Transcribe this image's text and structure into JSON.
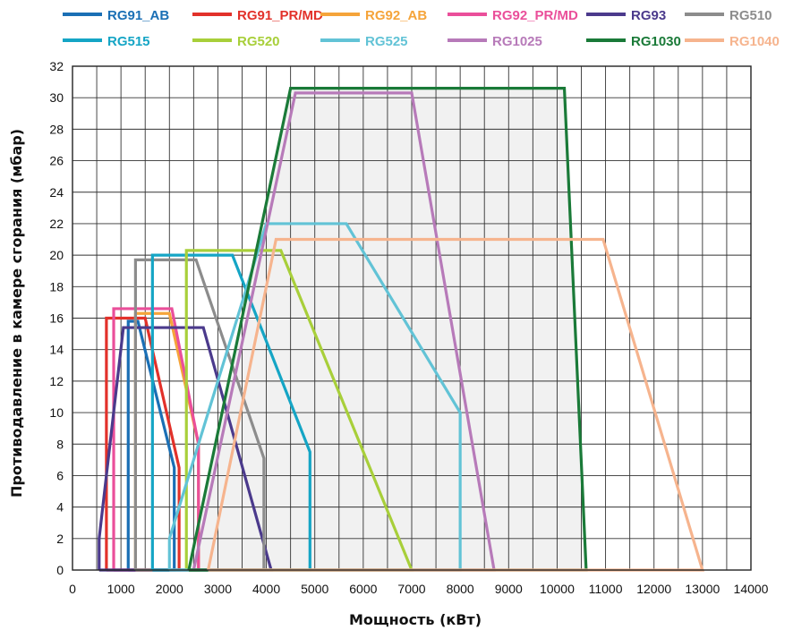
{
  "chart_data": {
    "type": "line",
    "title": "",
    "xlabel": "Мощность (кВт)",
    "ylabel": "Противодавление в камере сгорания (мбар)",
    "xlim": [
      0,
      14000
    ],
    "ylim": [
      0,
      32
    ],
    "xticks": [
      0,
      1000,
      2000,
      3000,
      4000,
      5000,
      6000,
      7000,
      8000,
      9000,
      10000,
      11000,
      12000,
      13000,
      14000
    ],
    "yticks": [
      0,
      2,
      4,
      6,
      8,
      10,
      12,
      14,
      16,
      18,
      20,
      22,
      24,
      26,
      28,
      30,
      32
    ],
    "xtick_labels": [
      "0",
      "1000",
      "2000",
      "3000",
      "4000",
      "5000",
      "6000",
      "7000",
      "8000",
      "9000",
      "10000",
      "11000",
      "12000",
      "13000",
      "14000"
    ],
    "ytick_labels": [
      "0",
      "2",
      "4",
      "6",
      "8",
      "10",
      "12",
      "14",
      "16",
      "18",
      "20",
      "22",
      "24",
      "26",
      "28",
      "30",
      "32"
    ],
    "grid": true,
    "legend_position": "top",
    "series": [
      {
        "name": "RG91_AB",
        "color": "#1a6fb5",
        "x": [
          1150,
          1150,
          1350,
          2100,
          2100,
          1150
        ],
        "y": [
          0,
          15.8,
          15.8,
          6.5,
          0,
          0
        ]
      },
      {
        "name": "RG91_PR/MD",
        "color": "#e2312a",
        "x": [
          700,
          700,
          1500,
          2200,
          2200,
          700
        ],
        "y": [
          0,
          16,
          16,
          6.5,
          0,
          0
        ]
      },
      {
        "name": "RG92_AB",
        "color": "#f5a43a",
        "x": [
          1300,
          1300,
          2000,
          2600,
          2600,
          1300
        ],
        "y": [
          0,
          16.3,
          16.3,
          8,
          0,
          0
        ]
      },
      {
        "name": "RG92_PR/MD",
        "color": "#ea4f9a",
        "x": [
          850,
          850,
          2050,
          2600,
          2600,
          850
        ],
        "y": [
          0,
          16.6,
          16.6,
          8,
          0,
          0
        ]
      },
      {
        "name": "RG93",
        "color": "#4b3a8c",
        "x": [
          550,
          550,
          1050,
          2700,
          4100,
          550
        ],
        "y": [
          0,
          2,
          15.4,
          15.4,
          0,
          0
        ]
      },
      {
        "name": "RG510",
        "color": "#8c8c8c",
        "x": [
          1300,
          1300,
          2550,
          3950,
          3950,
          1300
        ],
        "y": [
          0,
          19.7,
          19.7,
          7.1,
          0,
          0
        ]
      },
      {
        "name": "RG515",
        "color": "#15a5c5",
        "x": [
          1650,
          1650,
          3300,
          4900,
          4900,
          1650
        ],
        "y": [
          0,
          20,
          20,
          7.5,
          0,
          0
        ]
      },
      {
        "name": "RG520",
        "color": "#a8cf3a",
        "x": [
          2350,
          2350,
          4300,
          7000,
          2350
        ],
        "y": [
          0,
          20.3,
          20.3,
          0,
          0
        ]
      },
      {
        "name": "RG525",
        "color": "#62c3d6",
        "x": [
          2000,
          2000,
          4000,
          5650,
          8000,
          8000,
          2000
        ],
        "y": [
          0,
          2,
          22,
          22,
          10,
          0,
          0
        ]
      },
      {
        "name": "RG1025",
        "color": "#b77ab9",
        "x": [
          2500,
          4600,
          7000,
          8700,
          2500
        ],
        "y": [
          0,
          30.3,
          30.3,
          0,
          0
        ]
      },
      {
        "name": "RG1030",
        "color": "#1a7a38",
        "x": [
          2400,
          4500,
          10150,
          10600,
          2400
        ],
        "y": [
          0,
          30.6,
          30.6,
          0,
          0
        ]
      },
      {
        "name": "RG1040",
        "color": "#f6b48e",
        "x": [
          2800,
          4200,
          10950,
          13000,
          2800
        ],
        "y": [
          0,
          21,
          21,
          0,
          0
        ]
      }
    ]
  }
}
